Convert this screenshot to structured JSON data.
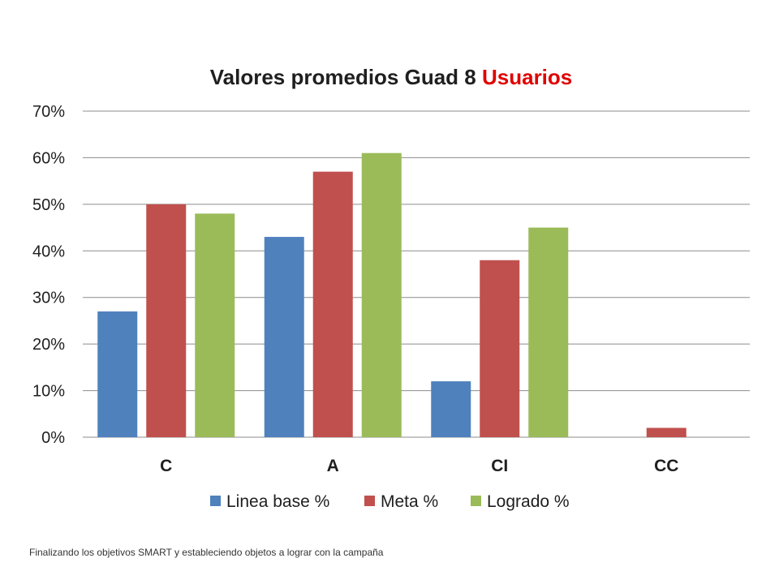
{
  "chart_data": {
    "type": "bar",
    "title": "Valores promedios Guad 8",
    "title_accent": "Usuarios",
    "title_color": "#1f1f1f",
    "title_accent_color": "#e00000",
    "categories": [
      "C",
      "A",
      "CI",
      "CC"
    ],
    "series": [
      {
        "name": "Linea base %",
        "color": "#4f81bd",
        "values": [
          27,
          43,
          12,
          0
        ]
      },
      {
        "name": "Meta %",
        "color": "#c0504d",
        "values": [
          50,
          57,
          38,
          2
        ]
      },
      {
        "name": "Logrado %",
        "color": "#9bbb59",
        "values": [
          48,
          61,
          45,
          0
        ]
      }
    ],
    "ylim": [
      0,
      70
    ],
    "yticks": [
      "0%",
      "10%",
      "20%",
      "30%",
      "40%",
      "50%",
      "60%",
      "70%"
    ],
    "grid": true,
    "legend_position": "bottom",
    "xlabel": "",
    "ylabel": ""
  },
  "footer": {
    "caption": "Finalizando los objetivos SMART y estableciendo objetos a lograr con la campaña"
  }
}
